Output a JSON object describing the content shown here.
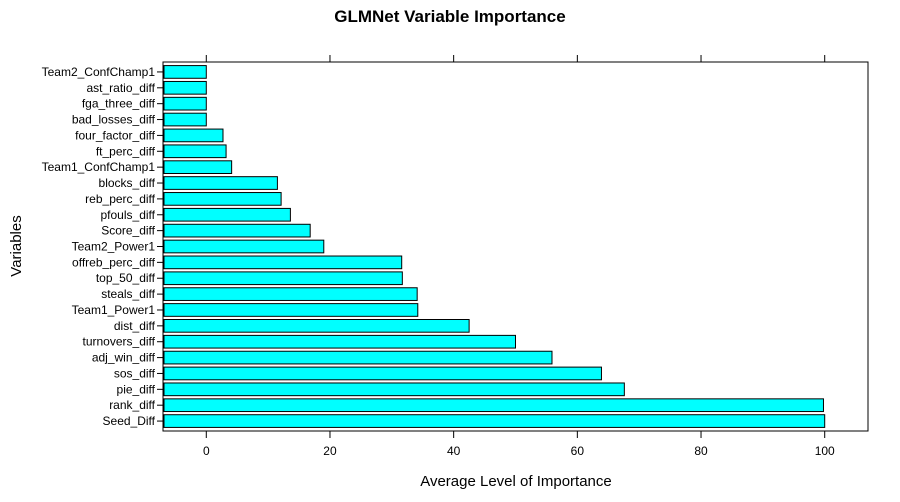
{
  "chart_data": {
    "type": "bar",
    "orientation": "horizontal",
    "title": "GLMNet Variable Importance",
    "xlabel": "Average Level of Importance",
    "ylabel": "Variables",
    "xlim": [
      -7,
      107
    ],
    "x_ticks": [
      0,
      20,
      40,
      60,
      80,
      100
    ],
    "x_tick_labels": [
      "0",
      "20",
      "40",
      "60",
      "80",
      "100"
    ],
    "grid": false,
    "legend": "none",
    "bar_color": "#00FFFF",
    "bar_edge_color": "#000000",
    "categories": [
      "Team2_ConfChamp1",
      "ast_ratio_diff",
      "fga_three_diff",
      "bad_losses_diff",
      "four_factor_diff",
      "ft_perc_diff",
      "Team1_ConfChamp1",
      "blocks_diff",
      "reb_perc_diff",
      "pfouls_diff",
      "Score_diff",
      "Team2_Power1",
      "offreb_perc_diff",
      "top_50_diff",
      "steals_diff",
      "Team1_Power1",
      "dist_diff",
      "turnovers_diff",
      "adj_win_diff",
      "sos_diff",
      "pie_diff",
      "rank_diff",
      "Seed_Diff"
    ],
    "values": [
      0.0,
      0.0,
      0.0,
      0.0,
      2.7,
      3.2,
      4.1,
      11.5,
      12.1,
      13.6,
      16.8,
      19.0,
      31.6,
      31.7,
      34.1,
      34.2,
      42.5,
      50.0,
      55.9,
      63.9,
      67.6,
      99.8,
      100.0
    ]
  }
}
